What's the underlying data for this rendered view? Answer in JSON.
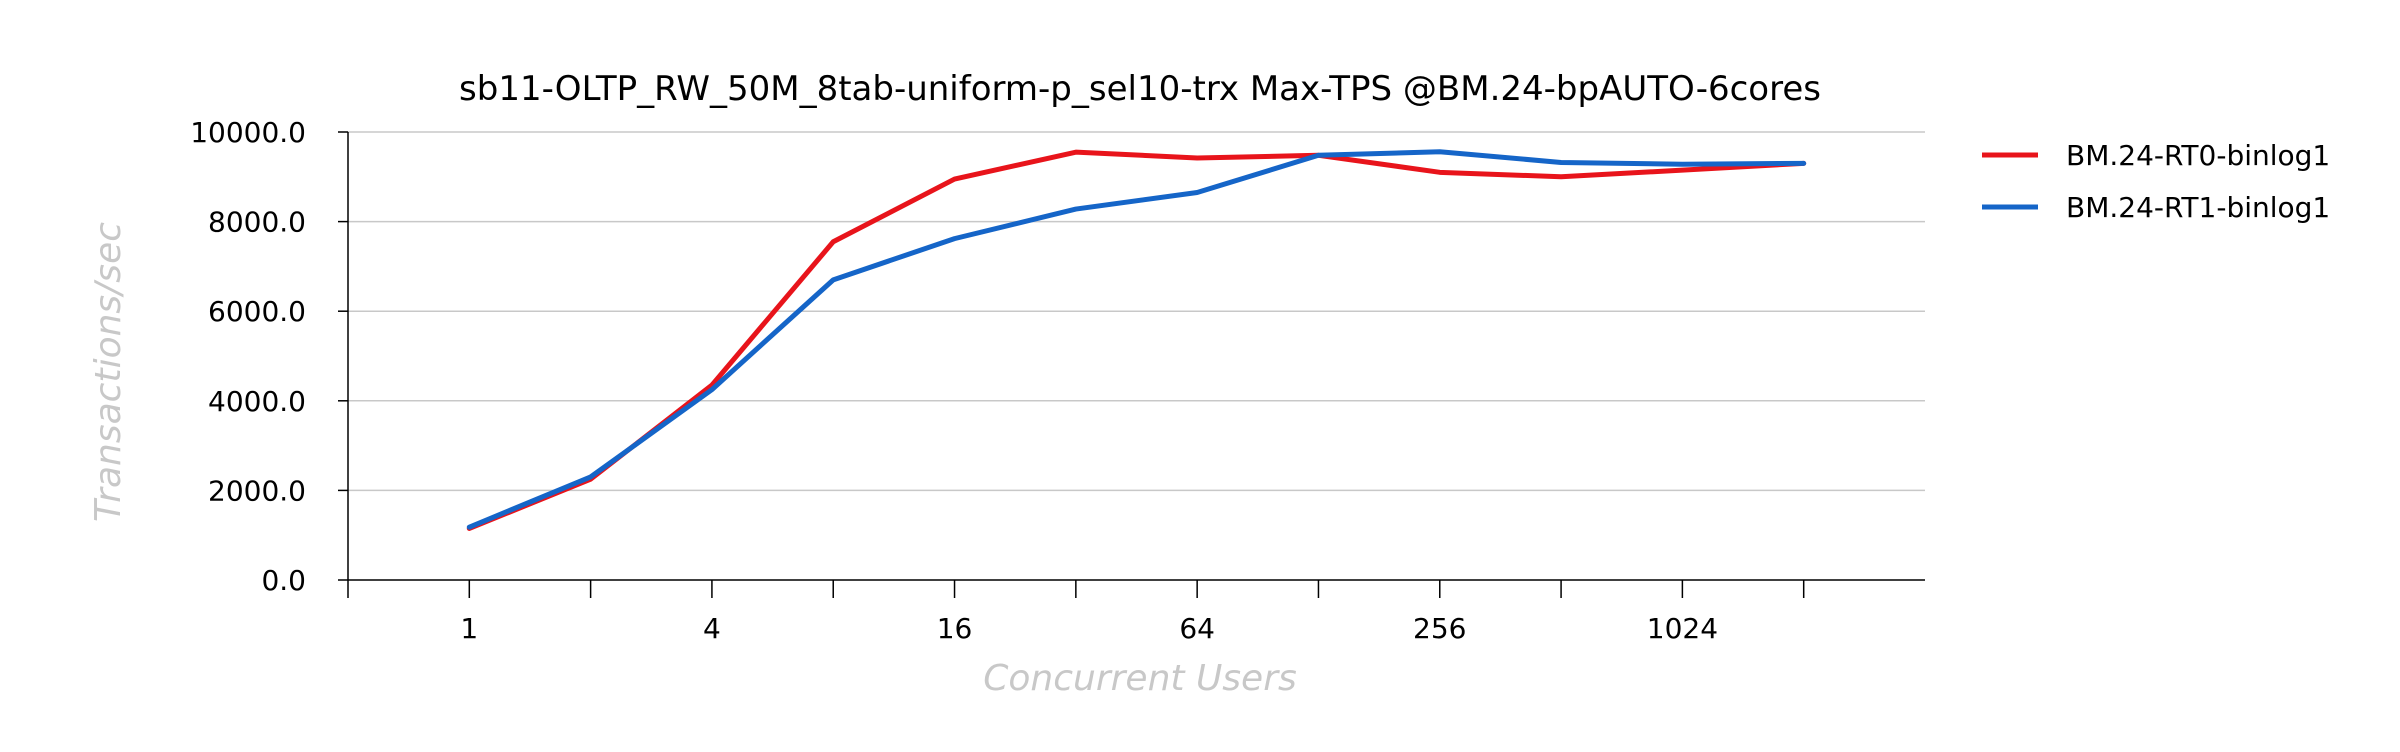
{
  "chart_data": {
    "type": "line",
    "title": "sb11-OLTP_RW_50M_8tab-uniform-p_sel10-trx Max-TPS @BM.24-bpAUTO-6cores",
    "xlabel": "Concurrent Users",
    "ylabel": "Transactions/sec",
    "x_scale": "log2",
    "x": [
      1,
      2,
      4,
      8,
      16,
      32,
      64,
      128,
      256,
      512,
      1024,
      2048
    ],
    "x_tick_values": [
      1,
      4,
      16,
      64,
      256,
      1024
    ],
    "x_tick_labels": [
      "1",
      "4",
      "16",
      "64",
      "256",
      "1024"
    ],
    "y_ticks": [
      0,
      2000,
      4000,
      6000,
      8000,
      10000
    ],
    "y_tick_labels": [
      "0.0",
      "2000.0",
      "4000.0",
      "6000.0",
      "8000.0",
      "10000.0"
    ],
    "ylim": [
      0,
      10000
    ],
    "grid": "horizontal",
    "legend_position": "right",
    "series": [
      {
        "name": "BM.24-RT0-binlog1",
        "color": "#e8141b",
        "values": [
          1150,
          2250,
          4350,
          7550,
          8950,
          9550,
          9420,
          9480,
          9100,
          9000,
          9150,
          9300
        ]
      },
      {
        "name": "BM.24-RT1-binlog1",
        "color": "#1565c8",
        "values": [
          1180,
          2300,
          4250,
          6700,
          7620,
          8280,
          8650,
          9480,
          9560,
          9320,
          9280,
          9300
        ]
      }
    ]
  }
}
